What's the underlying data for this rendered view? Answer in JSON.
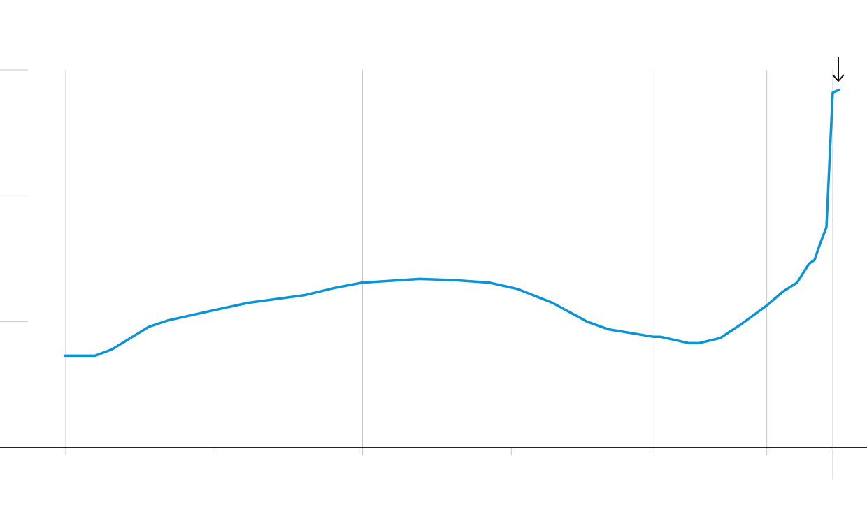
{
  "chart_data": {
    "type": "line",
    "x": [
      -0.1,
      3.83,
      6.02,
      10.85,
      13.31,
      19.23,
      23.79,
      31.08,
      35.19,
      38.65,
      41.11,
      46.13,
      50.68,
      55.24,
      58.89,
      63.45,
      68.0,
      70.74,
      76.66,
      77.58,
      81.22,
      82.59,
      85.32,
      88.06,
      91.43,
      93.53,
      95.35,
      96.08,
      96.9,
      97.63,
      98.36,
      99.18,
      100,
      100.82
    ],
    "series": [
      {
        "color": "#0a94d6",
        "values": [
          0.73,
          0.73,
          0.78,
          0.96,
          1.01,
          1.09,
          1.15,
          1.21,
          1.27,
          1.31,
          1.32,
          1.34,
          1.33,
          1.31,
          1.26,
          1.15,
          1.0,
          0.94,
          0.88,
          0.88,
          0.83,
          0.83,
          0.87,
          0.98,
          1.13,
          1.24,
          1.31,
          1.38,
          1.46,
          1.49,
          1.62,
          1.75,
          2.82,
          2.84
        ]
      }
    ],
    "xlim": [
      -8.57,
      104.47
    ],
    "ylim": [
      0,
      3
    ],
    "xticks": [
      0,
      19.2,
      38.7,
      58.1,
      76.7,
      91.4,
      100
    ],
    "xgrid": [
      0,
      38.7,
      76.7,
      91.4,
      100
    ],
    "yticks": [
      0,
      1,
      2,
      3
    ],
    "grid": true
  }
}
